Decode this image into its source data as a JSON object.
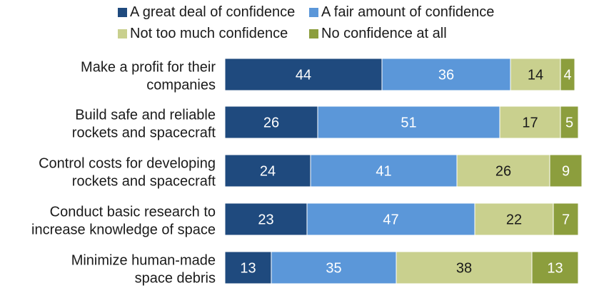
{
  "chart_data": {
    "type": "bar",
    "orientation": "horizontal",
    "stacked": true,
    "legend_position": "top",
    "grid": false,
    "xlim": [
      0,
      100
    ],
    "categories": [
      [
        "Make a profit for their",
        "companies"
      ],
      [
        "Build safe and reliable",
        "rockets and spacecraft"
      ],
      [
        "Control costs for developing",
        "rockets and spacecraft"
      ],
      [
        "Conduct basic research to",
        "increase knowledge of space"
      ],
      [
        "Minimize human-made",
        "space debris"
      ]
    ],
    "series": [
      {
        "name": "A great deal of confidence",
        "color": "#1f4a7e",
        "label_color": "#ffffff",
        "values": [
          44,
          26,
          24,
          23,
          13
        ]
      },
      {
        "name": "A fair amount of confidence",
        "color": "#5b97d9",
        "label_color": "#ffffff",
        "values": [
          36,
          51,
          41,
          47,
          35
        ]
      },
      {
        "name": "Not too much confidence",
        "color": "#c9d08e",
        "label_color": "#1a1a1a",
        "values": [
          14,
          17,
          26,
          22,
          38
        ]
      },
      {
        "name": "No confidence at all",
        "color": "#8c9e3d",
        "label_color": "#ffffff",
        "values": [
          4,
          5,
          9,
          7,
          13
        ]
      }
    ]
  }
}
